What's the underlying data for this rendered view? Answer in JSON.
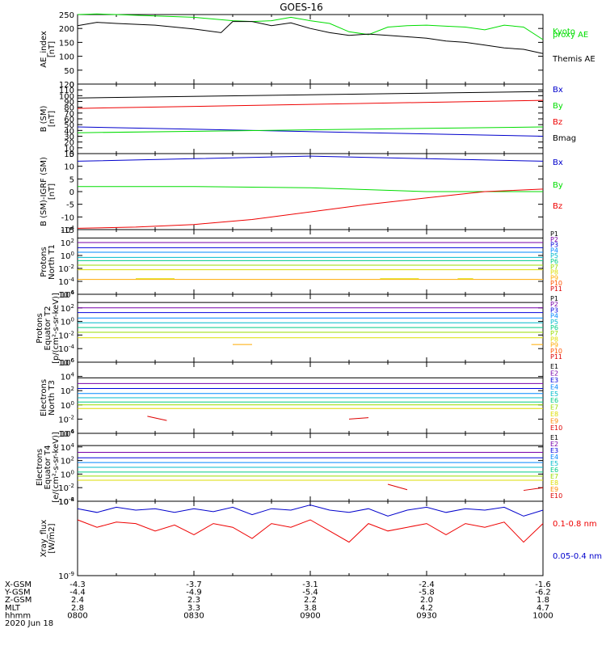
{
  "title": "GOES-16",
  "colors": {
    "black": "#000000",
    "green": "#00dd00",
    "red": "#ee0000",
    "blue": "#0000cc",
    "P": [
      "#000000",
      "#7700aa",
      "#0000dd",
      "#0088ff",
      "#00bbcc",
      "#00cc88",
      "#99dd00",
      "#dddd00",
      "#ffaa00",
      "#ff5500",
      "#dd0000"
    ],
    "E": [
      "#000000",
      "#7700aa",
      "#0000dd",
      "#0088ff",
      "#00bbcc",
      "#00cc88",
      "#99dd00",
      "#dddd00",
      "#ff8800",
      "#dd0000"
    ]
  },
  "chart_data": [
    {
      "type": "line",
      "panel": "AE index",
      "ylabel": [
        "AE_index",
        "[nT]"
      ],
      "ylim": [
        0,
        250
      ],
      "yticks": [
        "0",
        "50",
        "100",
        "150",
        "200",
        "250"
      ],
      "series": [
        {
          "name": "Kyoto proxy AE",
          "legend_lines": [
            "Kyoto",
            "proxy AE"
          ],
          "color": "green",
          "x": [
            0,
            5,
            10,
            20,
            30,
            40,
            45,
            50,
            55,
            60,
            65,
            70,
            75,
            80,
            85,
            90,
            95,
            100,
            105,
            110,
            115,
            120
          ],
          "y": [
            250,
            252,
            250,
            245,
            240,
            228,
            225,
            228,
            240,
            228,
            218,
            188,
            178,
            205,
            210,
            212,
            208,
            205,
            195,
            212,
            205,
            160
          ]
        },
        {
          "name": "Themis AE",
          "legend_lines": [
            "Themis AE"
          ],
          "color": "black",
          "x": [
            0,
            5,
            10,
            20,
            30,
            37,
            40,
            45,
            50,
            55,
            60,
            65,
            70,
            75,
            80,
            85,
            90,
            95,
            100,
            105,
            110,
            115,
            120
          ],
          "y": [
            210,
            222,
            218,
            212,
            198,
            185,
            225,
            225,
            210,
            220,
            200,
            185,
            175,
            180,
            175,
            170,
            165,
            155,
            150,
            140,
            130,
            125,
            110
          ]
        }
      ]
    },
    {
      "type": "line",
      "panel": "B (SM)",
      "ylabel": [
        "B (SM)",
        "[nT]"
      ],
      "ylim": [
        0,
        120
      ],
      "yticks": [
        "0",
        "10",
        "20",
        "30",
        "40",
        "50",
        "60",
        "70",
        "80",
        "90",
        "100",
        "110",
        "120"
      ],
      "series": [
        {
          "name": "Bx",
          "color": "blue",
          "x": [
            0,
            120
          ],
          "y": [
            46,
            30
          ]
        },
        {
          "name": "By",
          "color": "green",
          "x": [
            0,
            120
          ],
          "y": [
            36,
            46
          ]
        },
        {
          "name": "Bz",
          "color": "red",
          "x": [
            0,
            120
          ],
          "y": [
            78,
            92
          ]
        },
        {
          "name": "Bmag",
          "color": "black",
          "x": [
            0,
            120
          ],
          "y": [
            96,
            107
          ]
        }
      ]
    },
    {
      "type": "line",
      "panel": "B (SM)-IGRF (SM)",
      "ylabel": [
        "B (SM)-IGRF (SM)",
        "[nT]"
      ],
      "ylim": [
        -15,
        15
      ],
      "yticks": [
        "-15",
        "-10",
        "-5",
        "0",
        "5",
        "10",
        "15"
      ],
      "series": [
        {
          "name": "Bx",
          "color": "blue",
          "x": [
            0,
            30,
            60,
            90,
            120
          ],
          "y": [
            12,
            13,
            14,
            13,
            12
          ]
        },
        {
          "name": "By",
          "color": "green",
          "x": [
            0,
            30,
            60,
            90,
            120
          ],
          "y": [
            2,
            2,
            1.5,
            0,
            0
          ]
        },
        {
          "name": "Bz",
          "color": "red",
          "x": [
            0,
            15,
            30,
            45,
            60,
            75,
            90,
            105,
            120
          ],
          "y": [
            -14.5,
            -14,
            -13,
            -11,
            -8,
            -5,
            -2.5,
            0,
            1
          ]
        }
      ]
    },
    {
      "type": "line",
      "panel": "Protons North T1",
      "ylabel": [
        "Protons",
        "North T1"
      ],
      "log": true,
      "ylim_exp": [
        -6,
        4
      ],
      "yticks": [
        "10^4",
        "10^2",
        "10^0",
        "10^-2",
        "10^-4",
        "10^-6"
      ],
      "series_names": [
        "P1",
        "P2",
        "P3",
        "P4",
        "P5",
        "P6",
        "P7",
        "P8",
        "P9",
        "P10",
        "P11"
      ],
      "series_levels_exp": [
        2.7,
        2.0,
        1.2,
        0.5,
        -0.3,
        -0.8,
        -1.5,
        -2.2,
        -3.7
      ],
      "extra_segments": [
        {
          "series": "P8",
          "x": [
            15,
            25
          ],
          "y_exp": -3.6
        },
        {
          "series": "P8",
          "x": [
            78,
            88
          ],
          "y_exp": -3.6
        },
        {
          "series": "P8",
          "x": [
            98,
            102
          ],
          "y_exp": -3.6
        }
      ]
    },
    {
      "type": "line",
      "panel": "Protons Equator T2",
      "ylabel": [
        "Protons",
        "Equator T2",
        "[p/(cm²-s-sr-keV)]"
      ],
      "log": true,
      "ylim_exp": [
        -6,
        4
      ],
      "yticks": [
        "10^4",
        "10^2",
        "10^0",
        "10^-2",
        "10^-4",
        "10^-6"
      ],
      "series_names": [
        "P1",
        "P2",
        "P3",
        "P4",
        "P5",
        "P6",
        "P7",
        "P8",
        "P9",
        "P10",
        "P11"
      ],
      "series_levels_exp": [
        2.8,
        2.0,
        1.3,
        0.5,
        -0.2,
        -0.9,
        -1.6,
        -2.4
      ],
      "extra_segments": [
        {
          "series": "P9",
          "x": [
            40,
            45
          ],
          "y_exp": -3.4
        },
        {
          "series": "P9",
          "x": [
            117,
            120
          ],
          "y_exp": -3.4
        }
      ]
    },
    {
      "type": "line",
      "panel": "Electrons North T3",
      "ylabel": [
        "Electrons",
        "North T3"
      ],
      "log": true,
      "ylim_exp": [
        -4,
        6
      ],
      "yticks": [
        "10^6",
        "10^4",
        "10^2",
        "10^0",
        "10^-2",
        "10^-4"
      ],
      "series_names": [
        "E1",
        "E2",
        "E3",
        "E4",
        "E5",
        "E6",
        "E7",
        "E8",
        "E9",
        "E10"
      ],
      "series_levels_exp": [
        3.8,
        3.0,
        2.3,
        1.6,
        1.0,
        0.4,
        0.0,
        -0.5
      ],
      "extra_segments": [
        {
          "series": "E10",
          "x": [
            18,
            23
          ],
          "y_exp_from": -1.6,
          "y_exp_to": -2.2
        },
        {
          "series": "E10",
          "x": [
            70,
            75
          ],
          "y_exp_from": -2.0,
          "y_exp_to": -1.8
        }
      ]
    },
    {
      "type": "line",
      "panel": "Electrons Equator T4",
      "ylabel": [
        "Electrons",
        "Equator T4",
        "[e/(cm²-s-sr-keV)]"
      ],
      "log": true,
      "ylim_exp": [
        -4,
        6
      ],
      "yticks": [
        "10^6",
        "10^4",
        "10^2",
        "10^0",
        "10^-2",
        "10^-4"
      ],
      "series_names": [
        "E1",
        "E2",
        "E3",
        "E4",
        "E5",
        "E6",
        "E7",
        "E8",
        "E9",
        "E10"
      ],
      "series_levels_exp": [
        4.2,
        3.2,
        2.4,
        1.7,
        1.0,
        0.3,
        -0.3,
        -0.9
      ],
      "extra_segments": [
        {
          "series": "E10",
          "x": [
            80,
            85
          ],
          "y_exp_from": -1.5,
          "y_exp_to": -2.3
        },
        {
          "series": "E10",
          "x": [
            115,
            120
          ],
          "y_exp_from": -2.4,
          "y_exp_to": -2.0
        }
      ]
    },
    {
      "type": "line",
      "panel": "Xray flux",
      "ylabel": [
        "Xray_flux",
        "[W/m2]"
      ],
      "log": true,
      "ylim_exp": [
        -9,
        -8
      ],
      "yticks": [
        "10^-8",
        "10^-9"
      ],
      "series": [
        {
          "name": "0.1-0.8 nm",
          "color": "red",
          "x": [
            0,
            5,
            10,
            15,
            20,
            25,
            30,
            35,
            40,
            45,
            50,
            55,
            60,
            65,
            70,
            75,
            80,
            85,
            90,
            95,
            100,
            105,
            110,
            115,
            120
          ],
          "y_exp": [
            -8.25,
            -8.35,
            -8.28,
            -8.3,
            -8.4,
            -8.32,
            -8.45,
            -8.3,
            -8.35,
            -8.5,
            -8.3,
            -8.35,
            -8.25,
            -8.4,
            -8.55,
            -8.3,
            -8.4,
            -8.35,
            -8.3,
            -8.45,
            -8.3,
            -8.35,
            -8.28,
            -8.55,
            -8.3
          ]
        },
        {
          "name": "0.05-0.4 nm",
          "color": "blue",
          "x": [
            0,
            5,
            10,
            15,
            20,
            25,
            30,
            35,
            40,
            45,
            50,
            55,
            60,
            65,
            70,
            75,
            80,
            85,
            90,
            95,
            100,
            105,
            110,
            115,
            120
          ],
          "y_exp": [
            -8.1,
            -8.15,
            -8.08,
            -8.12,
            -8.1,
            -8.15,
            -8.1,
            -8.14,
            -8.08,
            -8.18,
            -8.1,
            -8.12,
            -8.05,
            -8.12,
            -8.15,
            -8.1,
            -8.2,
            -8.12,
            -8.08,
            -8.15,
            -8.1,
            -8.12,
            -8.08,
            -8.2,
            -8.12
          ]
        }
      ]
    }
  ],
  "x_axis": {
    "row_labels": [
      "X-GSM",
      "Y-GSM",
      "Z-GSM",
      "MLT",
      "hhmm",
      "2020 Jun 18"
    ],
    "ticks": [
      {
        "x": 0,
        "values": [
          "-4.3",
          "-4.4",
          "2.4",
          "2.8",
          "0800"
        ]
      },
      {
        "x": 30,
        "values": [
          "-3.7",
          "-4.9",
          "2.3",
          "3.3",
          "0830"
        ]
      },
      {
        "x": 60,
        "values": [
          "-3.1",
          "-5.4",
          "2.2",
          "3.8",
          "0900"
        ]
      },
      {
        "x": 90,
        "values": [
          "-2.4",
          "-5.8",
          "2.0",
          "4.2",
          "0930"
        ]
      },
      {
        "x": 120,
        "values": [
          "-1.6",
          "-6.2",
          "1.8",
          "4.7",
          "1000"
        ]
      }
    ]
  }
}
